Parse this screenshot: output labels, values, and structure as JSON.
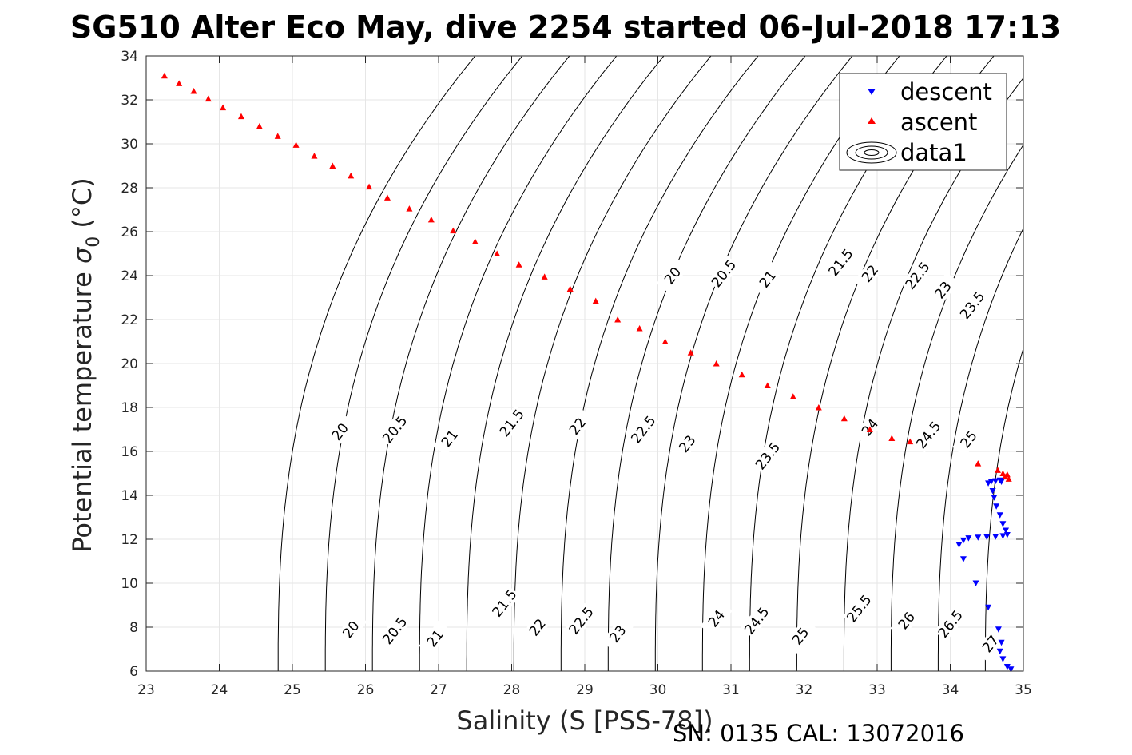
{
  "chart_data": {
    "type": "scatter",
    "title": "SG510 Alter Eco May, dive 2254 started 06-Jul-2018 17:13",
    "xlabel": "Salinity (S [PSS-78])",
    "ylabel_main": "Potential temperature ",
    "ylabel_sigma": "σ",
    "ylabel_sub": "0",
    "ylabel_unit": " (°C)",
    "xlim": [
      23,
      35
    ],
    "ylim": [
      6,
      34
    ],
    "grid": true,
    "legend_position": "top-right",
    "x_ticks": [
      "23",
      "24",
      "25",
      "26",
      "27",
      "28",
      "29",
      "30",
      "31",
      "32",
      "33",
      "34",
      "35"
    ],
    "y_ticks": [
      "6",
      "8",
      "10",
      "12",
      "14",
      "16",
      "18",
      "20",
      "22",
      "24",
      "26",
      "28",
      "30",
      "32",
      "34"
    ],
    "series": [
      {
        "name": "descent",
        "marker": "triangle-down",
        "color": "#0000ff",
        "points": [
          [
            34.52,
            14.55
          ],
          [
            34.56,
            14.62
          ],
          [
            34.62,
            14.65
          ],
          [
            34.68,
            14.68
          ],
          [
            34.7,
            14.62
          ],
          [
            34.58,
            14.2
          ],
          [
            34.6,
            13.9
          ],
          [
            34.63,
            13.5
          ],
          [
            34.68,
            13.1
          ],
          [
            34.72,
            12.7
          ],
          [
            34.76,
            12.4
          ],
          [
            34.78,
            12.2
          ],
          [
            34.72,
            12.15
          ],
          [
            34.62,
            12.12
          ],
          [
            34.5,
            12.1
          ],
          [
            34.38,
            12.08
          ],
          [
            34.25,
            12.05
          ],
          [
            34.18,
            11.95
          ],
          [
            34.12,
            11.75
          ],
          [
            34.18,
            11.1
          ],
          [
            34.35,
            10.0
          ],
          [
            34.52,
            8.9
          ],
          [
            34.66,
            7.9
          ],
          [
            34.7,
            7.3
          ],
          [
            34.68,
            6.9
          ],
          [
            34.72,
            6.55
          ],
          [
            34.78,
            6.2
          ],
          [
            34.83,
            6.08
          ]
        ]
      },
      {
        "name": "ascent",
        "marker": "triangle-up",
        "color": "#ff0000",
        "points": [
          [
            23.25,
            33.1
          ],
          [
            23.45,
            32.75
          ],
          [
            23.65,
            32.4
          ],
          [
            23.85,
            32.05
          ],
          [
            24.05,
            31.65
          ],
          [
            24.3,
            31.25
          ],
          [
            24.55,
            30.8
          ],
          [
            24.8,
            30.35
          ],
          [
            25.05,
            29.95
          ],
          [
            25.3,
            29.45
          ],
          [
            25.55,
            29.0
          ],
          [
            25.8,
            28.55
          ],
          [
            26.05,
            28.05
          ],
          [
            26.3,
            27.55
          ],
          [
            26.6,
            27.05
          ],
          [
            26.9,
            26.55
          ],
          [
            27.2,
            26.05
          ],
          [
            27.5,
            25.55
          ],
          [
            27.8,
            25.0
          ],
          [
            28.1,
            24.5
          ],
          [
            28.45,
            23.95
          ],
          [
            28.8,
            23.4
          ],
          [
            29.15,
            22.85
          ],
          [
            29.45,
            22.0
          ],
          [
            29.75,
            21.6
          ],
          [
            30.1,
            21.0
          ],
          [
            30.45,
            20.5
          ],
          [
            30.8,
            20.0
          ],
          [
            31.15,
            19.5
          ],
          [
            31.5,
            19.0
          ],
          [
            31.85,
            18.5
          ],
          [
            32.2,
            18.0
          ],
          [
            32.55,
            17.5
          ],
          [
            32.9,
            17.0
          ],
          [
            33.2,
            16.6
          ],
          [
            33.45,
            16.45
          ],
          [
            34.38,
            15.45
          ],
          [
            34.65,
            15.15
          ],
          [
            34.72,
            15.0
          ],
          [
            34.75,
            14.85
          ],
          [
            34.78,
            14.95
          ],
          [
            34.8,
            14.75
          ]
        ]
      },
      {
        "name": "data1",
        "marker": "contour"
      }
    ],
    "contour_labels": [
      {
        "text": "20",
        "s": 25.8,
        "t": 7.9
      },
      {
        "text": "20.5",
        "s": 26.4,
        "t": 7.85
      },
      {
        "text": "21",
        "s": 26.95,
        "t": 7.5
      },
      {
        "text": "21.5",
        "s": 27.9,
        "t": 9.1
      },
      {
        "text": "22",
        "s": 28.35,
        "t": 8.0
      },
      {
        "text": "22.5",
        "s": 28.95,
        "t": 8.3
      },
      {
        "text": "23",
        "s": 29.45,
        "t": 7.7
      },
      {
        "text": "24",
        "s": 30.8,
        "t": 8.4
      },
      {
        "text": "24.5",
        "s": 31.35,
        "t": 8.3
      },
      {
        "text": "25",
        "s": 31.95,
        "t": 7.6
      },
      {
        "text": "25.5",
        "s": 32.75,
        "t": 8.85
      },
      {
        "text": "26",
        "s": 33.4,
        "t": 8.3
      },
      {
        "text": "26.5",
        "s": 34.0,
        "t": 8.15
      },
      {
        "text": "27",
        "s": 34.55,
        "t": 7.25
      },
      {
        "text": "20",
        "s": 25.65,
        "t": 16.9
      },
      {
        "text": "20.5",
        "s": 26.4,
        "t": 17.0
      },
      {
        "text": "21",
        "s": 27.15,
        "t": 16.6
      },
      {
        "text": "21.5",
        "s": 28.0,
        "t": 17.3
      },
      {
        "text": "22",
        "s": 28.9,
        "t": 17.15
      },
      {
        "text": "22.5",
        "s": 29.8,
        "t": 17.0
      },
      {
        "text": "23",
        "s": 30.4,
        "t": 16.35
      },
      {
        "text": "23.5",
        "s": 31.5,
        "t": 15.8
      },
      {
        "text": "24",
        "s": 32.9,
        "t": 17.1
      },
      {
        "text": "24.5",
        "s": 33.7,
        "t": 16.75
      },
      {
        "text": "25",
        "s": 34.25,
        "t": 16.55
      },
      {
        "text": "20",
        "s": 30.2,
        "t": 24.0
      },
      {
        "text": "20.5",
        "s": 30.9,
        "t": 24.1
      },
      {
        "text": "21",
        "s": 31.5,
        "t": 23.85
      },
      {
        "text": "21.5",
        "s": 32.5,
        "t": 24.6
      },
      {
        "text": "22",
        "s": 32.9,
        "t": 24.1
      },
      {
        "text": "22.5",
        "s": 33.55,
        "t": 24.0
      },
      {
        "text": "23",
        "s": 33.9,
        "t": 23.35
      },
      {
        "text": "23.5",
        "s": 34.3,
        "t": 22.65
      }
    ]
  },
  "legend": {
    "entries": [
      "descent",
      "ascent",
      "data1"
    ]
  },
  "footer": "SN: 0135  CAL: 13072016"
}
